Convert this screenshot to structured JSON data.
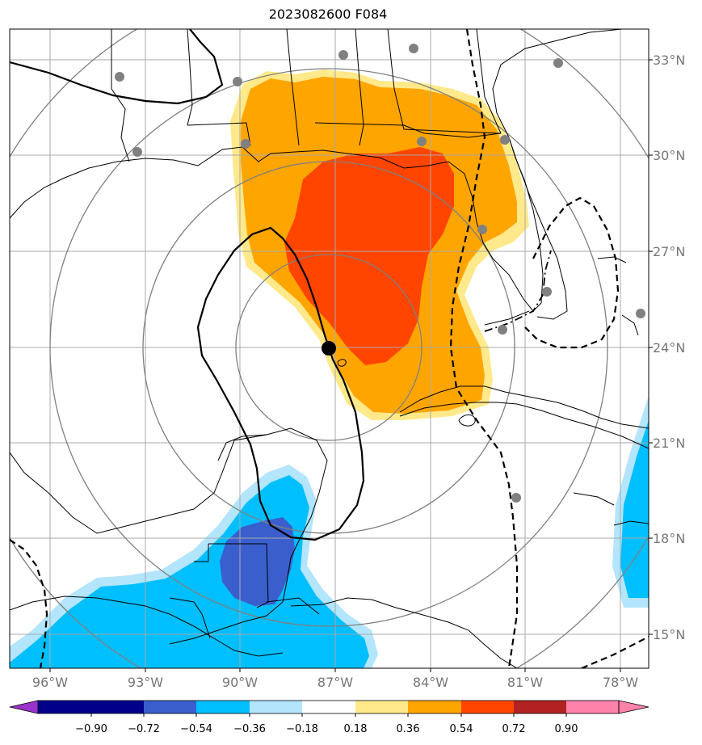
{
  "title": "2023082600 F084",
  "lon_ticks": [
    "96°W",
    "93°W",
    "90°W",
    "87°W",
    "84°W",
    "81°W",
    "78°W"
  ],
  "lat_ticks": [
    "33°N",
    "30°N",
    "27°N",
    "24°N",
    "21°N",
    "18°N",
    "15°N"
  ],
  "colorbar": {
    "labels": [
      "−0.90",
      "−0.72",
      "−0.54",
      "−0.36",
      "−0.18",
      "0.18",
      "0.36",
      "0.54",
      "0.72",
      "0.90"
    ],
    "colors": [
      "#9932cc",
      "#00008b",
      "#3a5fcd",
      "#00bfff",
      "#b3e5fc",
      "#ffffff",
      "#ffe98a",
      "#ffa500",
      "#ff4500",
      "#b22222",
      "#ff82ab"
    ]
  },
  "fill_colors": {
    "light_yellow": "#ffe98a",
    "orange": "#ffa500",
    "red_orange": "#ff4500",
    "light_blue": "#b3e5fc",
    "sky_blue": "#00bfff",
    "royal_blue": "#3a5fcd"
  },
  "storm_center": {
    "lon": -87.3,
    "lat": 24.0
  },
  "station_marker_color": "#808080"
}
